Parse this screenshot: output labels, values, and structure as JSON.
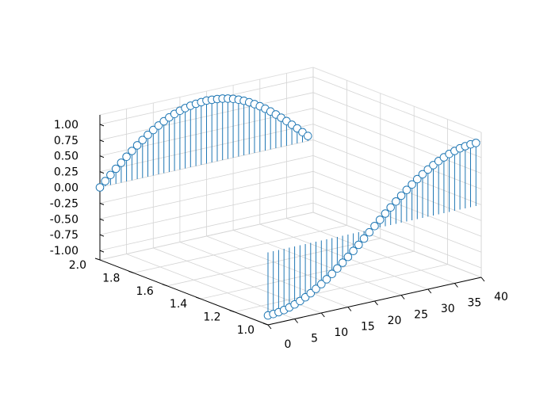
{
  "chart_data": {
    "type": "stem3d",
    "title": "",
    "xlabel": "",
    "ylabel": "",
    "zlabel": "",
    "grid": true,
    "marker": "open-circle",
    "color": "#1f77b4",
    "xlim": [
      0,
      40
    ],
    "ylim": [
      1.0,
      2.0
    ],
    "zlim": [
      -1.0,
      1.0
    ],
    "x_ticks": [
      "0",
      "5",
      "10",
      "15",
      "20",
      "25",
      "30",
      "35",
      "40"
    ],
    "y_ticks": [
      "1.0",
      "1.2",
      "1.4",
      "1.6",
      "1.8",
      "2.0"
    ],
    "z_ticks": [
      "-1.00",
      "-0.75",
      "-0.50",
      "-0.25",
      "0.00",
      "0.25",
      "0.50",
      "0.75",
      "1.00"
    ],
    "series": [
      {
        "y": 1.0,
        "x": [
          0,
          1,
          2,
          3,
          4,
          5,
          6,
          7,
          8,
          9,
          10,
          11,
          12,
          13,
          14,
          15,
          16,
          17,
          18,
          19,
          20,
          21,
          22,
          23,
          24,
          25,
          26,
          27,
          28,
          29,
          30,
          31,
          32,
          33,
          34,
          35,
          36,
          37,
          38,
          39
        ],
        "z": [
          -1.0,
          -0.997,
          -0.987,
          -0.971,
          -0.949,
          -0.92,
          -0.885,
          -0.845,
          -0.799,
          -0.749,
          -0.693,
          -0.633,
          -0.568,
          -0.5,
          -0.429,
          -0.355,
          -0.279,
          -0.201,
          -0.121,
          -0.04,
          0.04,
          0.121,
          0.201,
          0.279,
          0.355,
          0.429,
          0.5,
          0.568,
          0.633,
          0.693,
          0.749,
          0.799,
          0.845,
          0.885,
          0.92,
          0.949,
          0.971,
          0.987,
          0.997,
          1.0
        ]
      },
      {
        "y": 2.0,
        "x": [
          0,
          1,
          2,
          3,
          4,
          5,
          6,
          7,
          8,
          9,
          10,
          11,
          12,
          13,
          14,
          15,
          16,
          17,
          18,
          19,
          20,
          21,
          22,
          23,
          24,
          25,
          26,
          27,
          28,
          29,
          30,
          31,
          32,
          33,
          34,
          35,
          36,
          37,
          38,
          39
        ],
        "z": [
          0.0,
          0.08,
          0.16,
          0.239,
          0.316,
          0.392,
          0.465,
          0.535,
          0.601,
          0.663,
          0.721,
          0.774,
          0.822,
          0.865,
          0.901,
          0.932,
          0.956,
          0.975,
          0.987,
          0.994,
          1.0,
          0.994,
          0.987,
          0.975,
          0.956,
          0.932,
          0.901,
          0.865,
          0.822,
          0.774,
          0.721,
          0.663,
          0.601,
          0.535,
          0.465,
          0.392,
          0.316,
          0.239,
          0.16,
          0.08
        ]
      }
    ]
  }
}
